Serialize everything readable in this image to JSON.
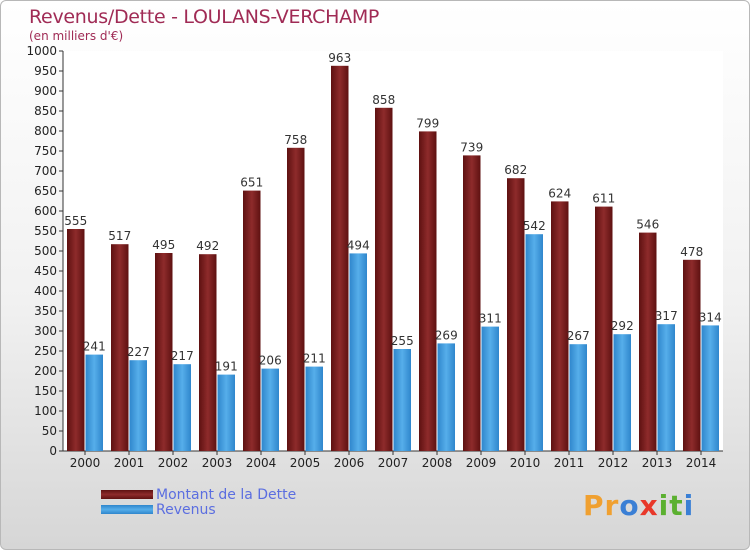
{
  "title": "Revenus/Dette - LOULANS-VERCHAMP",
  "subtitle": "(en milliers d'€)",
  "legend": {
    "debt_label": "Montant de la Dette",
    "revenue_label": "Revenus"
  },
  "logo": {
    "text": "Proxiti",
    "letters": [
      "P",
      "r",
      "o",
      "x",
      "i",
      "t",
      "i"
    ],
    "colors": [
      "#f0a030",
      "#f0a030",
      "#3a7fd5",
      "#e8382a",
      "#5bb030",
      "#5bb030",
      "#3a7fd5"
    ]
  },
  "colors": {
    "debt": "#7a1c1c",
    "debt_top": "#8a2828",
    "revenue": "#3d97db",
    "title": "#a02b55",
    "legend_text": "#5b6ee0"
  },
  "chart_data": {
    "type": "bar",
    "title": "Revenus/Dette - LOULANS-VERCHAMP",
    "ylabel": "(en milliers d'€)",
    "ylim": [
      0,
      1000
    ],
    "ytick_step": 50,
    "grid": false,
    "legend_position": "bottom-left",
    "categories": [
      "2000",
      "2001",
      "2002",
      "2003",
      "2004",
      "2005",
      "2006",
      "2007",
      "2008",
      "2009",
      "2010",
      "2011",
      "2012",
      "2013",
      "2014"
    ],
    "series": [
      {
        "name": "Montant de la Dette",
        "values": [
          555,
          517,
          495,
          492,
          651,
          758,
          963,
          858,
          799,
          739,
          682,
          624,
          611,
          546,
          478
        ]
      },
      {
        "name": "Revenus",
        "values": [
          241,
          227,
          217,
          191,
          206,
          211,
          494,
          255,
          269,
          311,
          542,
          267,
          292,
          317,
          314
        ]
      }
    ]
  }
}
